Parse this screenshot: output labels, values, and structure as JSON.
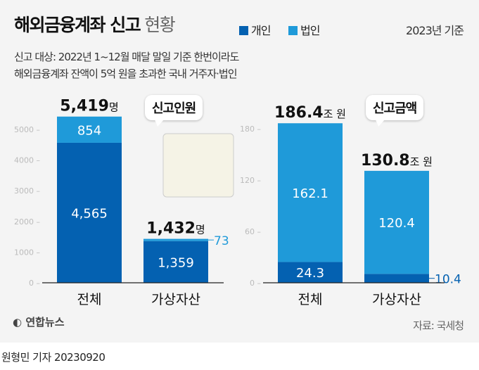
{
  "header": {
    "title": "해외금융계좌 신고",
    "title_light": "현황",
    "base_date": "2023년 기준",
    "subtitle_lines": [
      "신고 대상: 2022년 1~12월 매달 말일 기준 한번이라도",
      "해외금융계좌 잔액이 5억 원을 초과한 국내 거주자·법인"
    ]
  },
  "legend": [
    {
      "name": "개인",
      "color": "#0461b1"
    },
    {
      "name": "법인",
      "color": "#1f9ad9"
    }
  ],
  "chart_data": [
    {
      "type": "bar",
      "stacked": true,
      "title": "신고인원",
      "categories": [
        "전체",
        "가상자산"
      ],
      "ylim": [
        0,
        5419
      ],
      "yticks": [
        0,
        1000,
        2000,
        3000,
        4000,
        5000
      ],
      "series": [
        {
          "name": "개인",
          "values": [
            4565,
            1359
          ],
          "labels": [
            "4,565",
            "1,359"
          ]
        },
        {
          "name": "법인",
          "values": [
            854,
            73
          ],
          "labels": [
            "854",
            "73"
          ]
        }
      ],
      "totals": [
        {
          "value": "5,419",
          "unit": "명"
        },
        {
          "value": "1,432",
          "unit": "명"
        }
      ]
    },
    {
      "type": "bar",
      "stacked": true,
      "title": "신고금액",
      "categories": [
        "전체",
        "가상자산"
      ],
      "ylim": [
        0,
        186.4
      ],
      "yticks": [
        0,
        60,
        120,
        180
      ],
      "series": [
        {
          "name": "개인",
          "values": [
            24.3,
            10.4
          ],
          "labels": [
            "24.3",
            "10.4"
          ]
        },
        {
          "name": "법인",
          "values": [
            162.1,
            120.4
          ],
          "labels": [
            "162.1",
            "120.4"
          ]
        }
      ],
      "totals": [
        {
          "value": "186.4",
          "unit": "조 원"
        },
        {
          "value": "130.8",
          "unit": "조 원"
        }
      ]
    }
  ],
  "footer": {
    "logo": "연합뉴스",
    "source": "자료: 국세청",
    "byline": "원형민 기자  20230920"
  }
}
